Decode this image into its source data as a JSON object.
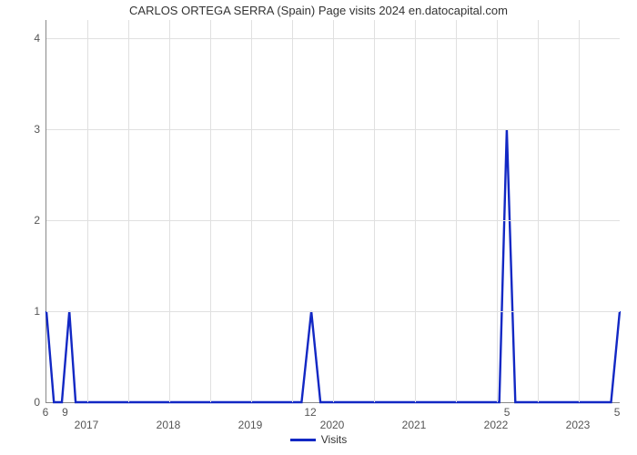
{
  "chart": {
    "type": "line",
    "title": "CARLOS ORTEGA SERRA (Spain) Page visits 2024 en.datocapital.com",
    "title_fontsize": 13,
    "background_color": "#ffffff",
    "grid_color": "#e0e0e0",
    "axis_color": "#888888",
    "tick_fontsize": 12,
    "stroke_color": "#1228c4",
    "stroke_width": 2.4,
    "ylim": [
      0,
      4.2
    ],
    "yticks": [
      0,
      1,
      2,
      3,
      4
    ],
    "x_years": [
      2017,
      2018,
      2019,
      2020,
      2021,
      2022,
      2023
    ],
    "data_labels": [
      {
        "pos": 0.0,
        "text": "6"
      },
      {
        "pos": 0.034,
        "text": "9"
      },
      {
        "pos": 0.462,
        "text": "12"
      },
      {
        "pos": 0.805,
        "text": "5"
      },
      {
        "pos": 0.997,
        "text": "5"
      }
    ],
    "points": [
      [
        0.0,
        1.0
      ],
      [
        0.013,
        0.0
      ],
      [
        0.027,
        0.0
      ],
      [
        0.04,
        1.0
      ],
      [
        0.051,
        0.0
      ],
      [
        0.065,
        0.0
      ],
      [
        0.445,
        0.0
      ],
      [
        0.462,
        1.0
      ],
      [
        0.478,
        0.0
      ],
      [
        0.79,
        0.0
      ],
      [
        0.803,
        3.0
      ],
      [
        0.818,
        0.0
      ],
      [
        0.985,
        0.0
      ],
      [
        1.0,
        1.0
      ]
    ]
  },
  "legend": {
    "label": "Visits",
    "swatch_color": "#1228c4"
  }
}
